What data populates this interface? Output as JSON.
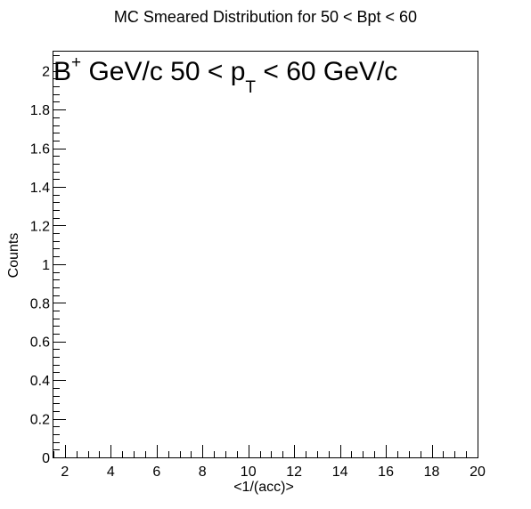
{
  "title": "MC Smeared Distribution for 50 < Bpt < 60",
  "chart_data": {
    "type": "bar",
    "title": "MC Smeared Distribution for 50 < Bpt < 60",
    "xlabel": "<1/(acc)>",
    "ylabel": "Counts",
    "xlim": [
      1.5,
      20
    ],
    "ylim": [
      0,
      2.1
    ],
    "x_ticks": [
      2,
      4,
      6,
      8,
      10,
      12,
      14,
      16,
      18,
      20
    ],
    "y_ticks": [
      0,
      0.2,
      0.4,
      0.6,
      0.8,
      1,
      1.2,
      1.4,
      1.6,
      1.8,
      2
    ],
    "series": [],
    "legend": "none",
    "grid": false,
    "annotation": {
      "main": "B",
      "sup": "+",
      "mid": " GeV/c 50 < p",
      "sub": "T",
      "tail": " < 60 GeV/c"
    }
  }
}
